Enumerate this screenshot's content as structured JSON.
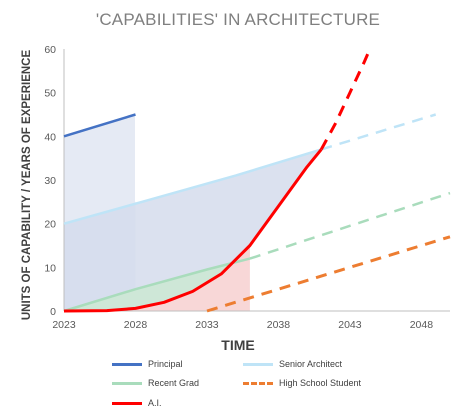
{
  "chart_data": {
    "type": "line",
    "title": "'CAPABILITIES' IN ARCHITECTURE",
    "xlabel": "TIME",
    "ylabel": "UNITS OF CAPABILITY / YEARS OF EXPERIENCE",
    "xlim": [
      2023,
      2050
    ],
    "ylim": [
      0,
      60
    ],
    "xticks": [
      2023,
      2028,
      2033,
      2038,
      2043,
      2048
    ],
    "yticks": [
      0,
      10,
      20,
      30,
      40,
      50,
      60
    ],
    "legend_position": "bottom",
    "series": [
      {
        "name": "Principal",
        "color": "#4472c4",
        "style": "solid",
        "points": [
          [
            2023,
            40
          ],
          [
            2028,
            45
          ]
        ]
      },
      {
        "name": "Senior Architect",
        "color": "#bfe4f7",
        "style": "solid-then-dashed",
        "points": [
          [
            2023,
            20
          ],
          [
            2029,
            25.5
          ],
          [
            2035,
            31
          ],
          [
            2041,
            37
          ]
        ],
        "dashed_points": [
          [
            2041,
            37
          ],
          [
            2049,
            45
          ]
        ]
      },
      {
        "name": "Recent Grad",
        "color": "#a9dcbc",
        "style": "solid-then-dashed",
        "points": [
          [
            2023,
            0
          ],
          [
            2028,
            5
          ],
          [
            2033,
            9.5
          ],
          [
            2036,
            12
          ]
        ],
        "dashed_points": [
          [
            2036,
            12
          ],
          [
            2050,
            27
          ]
        ]
      },
      {
        "name": "High School Student",
        "color": "#ed7d31",
        "style": "dashed",
        "points": [
          [
            2033,
            0
          ],
          [
            2050,
            17
          ]
        ]
      },
      {
        "name": "A.I.",
        "color": "#ff0000",
        "style": "solid-then-dashed",
        "points": [
          [
            2023,
            0
          ],
          [
            2026,
            0.1
          ],
          [
            2028,
            0.6
          ],
          [
            2030,
            2
          ],
          [
            2032,
            4.5
          ],
          [
            2034,
            8.5
          ],
          [
            2036,
            15
          ],
          [
            2038,
            24
          ],
          [
            2040,
            33
          ],
          [
            2041,
            37
          ]
        ],
        "dashed_points": [
          [
            2041,
            37
          ],
          [
            2042,
            43
          ],
          [
            2043,
            50
          ],
          [
            2044,
            57
          ],
          [
            2044.4,
            60
          ]
        ]
      }
    ]
  }
}
